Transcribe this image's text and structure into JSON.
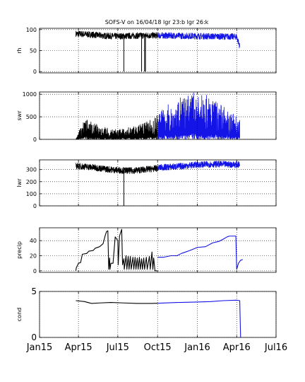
{
  "title": "SOFS-V on 16/04/18 lgr 23:b lgr 26:k",
  "colors": {
    "series_black": "#000000",
    "series_blue": "#1414e6",
    "grid": "#000000"
  },
  "x_axis": {
    "labels": [
      "Jan15",
      "Apr15",
      "Jul15",
      "Oct15",
      "Jan16",
      "Apr16",
      "Jul16"
    ],
    "dates": [
      "2015-01-01",
      "2015-04-01",
      "2015-07-01",
      "2015-10-01",
      "2016-01-01",
      "2016-04-01",
      "2016-07-01"
    ],
    "lim": [
      "2015-01-01",
      "2016-07-01"
    ]
  },
  "chart_data": [
    {
      "type": "line",
      "ylabel": "rh",
      "ylim": [
        -3,
        103
      ],
      "yticks": [
        "0",
        "50",
        "100"
      ],
      "ytick_values": [
        0,
        50,
        100
      ],
      "grid": true,
      "series": [
        {
          "color": "#000000",
          "noise": 1,
          "points": [
            [
              "2015-03-26",
              90
            ],
            [
              "2015-05-01",
              88
            ],
            [
              "2015-06-01",
              85
            ],
            [
              "2015-07-01",
              84
            ],
            [
              "2015-08-01",
              85
            ],
            [
              "2015-09-01",
              86
            ],
            [
              "2015-10-01",
              86
            ]
          ],
          "spikes": [
            [
              "2015-07-15",
              0
            ],
            [
              "2015-08-25",
              0
            ],
            [
              "2015-09-01",
              0
            ],
            [
              "2015-09-03",
              0
            ]
          ]
        },
        {
          "color": "#1414e6",
          "noise": 1,
          "points": [
            [
              "2015-10-01",
              86
            ],
            [
              "2015-12-01",
              85
            ],
            [
              "2016-02-01",
              84
            ],
            [
              "2016-04-01",
              83
            ],
            [
              "2016-04-08",
              60
            ]
          ]
        }
      ]
    },
    {
      "type": "line",
      "ylabel": "swr",
      "ylim": [
        0,
        1050
      ],
      "yticks": [
        "0",
        "500",
        "1000"
      ],
      "ytick_values": [
        0,
        500,
        1000
      ],
      "grid": true,
      "series": [
        {
          "color": "#000000",
          "noise": 2,
          "points": [
            [
              "2015-03-26",
              0
            ],
            [
              "2015-04-15",
              450
            ],
            [
              "2015-05-15",
              300
            ],
            [
              "2015-06-20",
              200
            ],
            [
              "2015-07-20",
              230
            ],
            [
              "2015-08-20",
              300
            ],
            [
              "2015-09-20",
              430
            ],
            [
              "2015-10-01",
              500
            ]
          ]
        },
        {
          "color": "#1414e6",
          "noise": 2,
          "points": [
            [
              "2015-10-01",
              550
            ],
            [
              "2015-11-01",
              750
            ],
            [
              "2015-12-20",
              950
            ],
            [
              "2016-01-20",
              900
            ],
            [
              "2016-02-20",
              750
            ],
            [
              "2016-03-20",
              550
            ],
            [
              "2016-04-08",
              400
            ]
          ]
        }
      ]
    },
    {
      "type": "line",
      "ylabel": "lwr",
      "ylim": [
        0,
        380
      ],
      "yticks": [
        "0",
        "100",
        "200",
        "300"
      ],
      "ytick_values": [
        0,
        100,
        200,
        300
      ],
      "grid": true,
      "series": [
        {
          "color": "#000000",
          "noise": 1,
          "points": [
            [
              "2015-03-26",
              330
            ],
            [
              "2015-05-01",
              320
            ],
            [
              "2015-06-01",
              305
            ],
            [
              "2015-07-01",
              295
            ],
            [
              "2015-08-01",
              290
            ],
            [
              "2015-09-01",
              300
            ],
            [
              "2015-10-01",
              310
            ]
          ],
          "spikes": [
            [
              "2015-07-15",
              0
            ]
          ]
        },
        {
          "color": "#1414e6",
          "noise": 1,
          "points": [
            [
              "2015-10-01",
              315
            ],
            [
              "2015-11-15",
              325
            ],
            [
              "2016-01-01",
              340
            ],
            [
              "2016-02-15",
              345
            ],
            [
              "2016-04-08",
              340
            ]
          ]
        }
      ]
    },
    {
      "type": "line",
      "ylabel": "precip",
      "ylim": [
        -2,
        57
      ],
      "yticks": [
        "0",
        "20",
        "40"
      ],
      "ytick_values": [
        0,
        20,
        40
      ],
      "grid": true,
      "series": [
        {
          "color": "#000000",
          "noise": 0,
          "points": [
            [
              "2015-03-26",
              0
            ],
            [
              "2015-03-27",
              4
            ],
            [
              "2015-04-01",
              10
            ],
            [
              "2015-04-06",
              11
            ],
            [
              "2015-04-10",
              22
            ],
            [
              "2015-04-20",
              23
            ],
            [
              "2015-04-25",
              26
            ],
            [
              "2015-05-05",
              27
            ],
            [
              "2015-05-10",
              30
            ],
            [
              "2015-05-20",
              32
            ],
            [
              "2015-05-28",
              36
            ],
            [
              "2015-06-02",
              47
            ],
            [
              "2015-06-05",
              52
            ],
            [
              "2015-06-08",
              53
            ],
            [
              "2015-06-10",
              2
            ],
            [
              "2015-06-12",
              17
            ],
            [
              "2015-06-13",
              2
            ],
            [
              "2015-06-15",
              10
            ],
            [
              "2015-06-20",
              10
            ],
            [
              "2015-06-25",
              45
            ],
            [
              "2015-07-01",
              40
            ],
            [
              "2015-07-02",
              8
            ],
            [
              "2015-07-05",
              46
            ],
            [
              "2015-07-10",
              55
            ],
            [
              "2015-07-12",
              8
            ],
            [
              "2015-07-15",
              16
            ],
            [
              "2015-07-16",
              2
            ],
            [
              "2015-07-20",
              20
            ],
            [
              "2015-07-22",
              2
            ],
            [
              "2015-07-25",
              19
            ],
            [
              "2015-07-27",
              2
            ],
            [
              "2015-07-30",
              19
            ],
            [
              "2015-08-01",
              2
            ],
            [
              "2015-08-05",
              18
            ],
            [
              "2015-08-07",
              2
            ],
            [
              "2015-08-10",
              18
            ],
            [
              "2015-08-12",
              2
            ],
            [
              "2015-08-15",
              17
            ],
            [
              "2015-08-17",
              2
            ],
            [
              "2015-08-20",
              18
            ],
            [
              "2015-08-22",
              2
            ],
            [
              "2015-08-25",
              16
            ],
            [
              "2015-08-27",
              2
            ],
            [
              "2015-08-30",
              17
            ],
            [
              "2015-09-01",
              2
            ],
            [
              "2015-09-05",
              18
            ],
            [
              "2015-09-07",
              2
            ],
            [
              "2015-09-12",
              19
            ],
            [
              "2015-09-14",
              2
            ],
            [
              "2015-09-18",
              25
            ],
            [
              "2015-09-20",
              2
            ],
            [
              "2015-09-22",
              17
            ],
            [
              "2015-09-25",
              0
            ],
            [
              "2015-09-30",
              0
            ]
          ]
        },
        {
          "color": "#1414e6",
          "noise": 0,
          "points": [
            [
              "2015-10-01",
              18
            ],
            [
              "2015-10-15",
              18
            ],
            [
              "2015-11-01",
              20
            ],
            [
              "2015-11-15",
              20
            ],
            [
              "2015-11-25",
              23
            ],
            [
              "2015-12-05",
              25
            ],
            [
              "2015-12-15",
              27
            ],
            [
              "2016-01-01",
              31
            ],
            [
              "2016-01-20",
              32
            ],
            [
              "2016-02-05",
              37
            ],
            [
              "2016-02-20",
              39
            ],
            [
              "2016-03-01",
              42
            ],
            [
              "2016-03-10",
              45
            ],
            [
              "2016-03-15",
              46
            ],
            [
              "2016-03-30",
              46
            ],
            [
              "2016-04-01",
              2
            ],
            [
              "2016-04-05",
              10
            ],
            [
              "2016-04-10",
              14
            ],
            [
              "2016-04-15",
              15
            ]
          ]
        }
      ]
    },
    {
      "type": "line",
      "ylabel": "cond",
      "ylim": [
        0,
        5
      ],
      "yticks": [
        "0",
        "5"
      ],
      "ytick_values": [
        0,
        5
      ],
      "big_ticks": true,
      "grid": true,
      "series": [
        {
          "color": "#000000",
          "noise": 0,
          "points": [
            [
              "2015-03-26",
              4.0
            ],
            [
              "2015-04-15",
              3.9
            ],
            [
              "2015-05-01",
              3.7
            ],
            [
              "2015-05-20",
              3.75
            ],
            [
              "2015-06-15",
              3.8
            ],
            [
              "2015-07-15",
              3.75
            ],
            [
              "2015-08-15",
              3.7
            ],
            [
              "2015-09-15",
              3.7
            ],
            [
              "2015-10-01",
              3.72
            ]
          ]
        },
        {
          "color": "#1414e6",
          "noise": 0,
          "points": [
            [
              "2015-10-01",
              3.72
            ],
            [
              "2015-11-15",
              3.8
            ],
            [
              "2016-01-01",
              3.85
            ],
            [
              "2016-02-01",
              3.9
            ],
            [
              "2016-03-01",
              4.0
            ],
            [
              "2016-04-01",
              4.05
            ],
            [
              "2016-04-08",
              4.0
            ],
            [
              "2016-04-10",
              0
            ]
          ]
        }
      ]
    }
  ]
}
